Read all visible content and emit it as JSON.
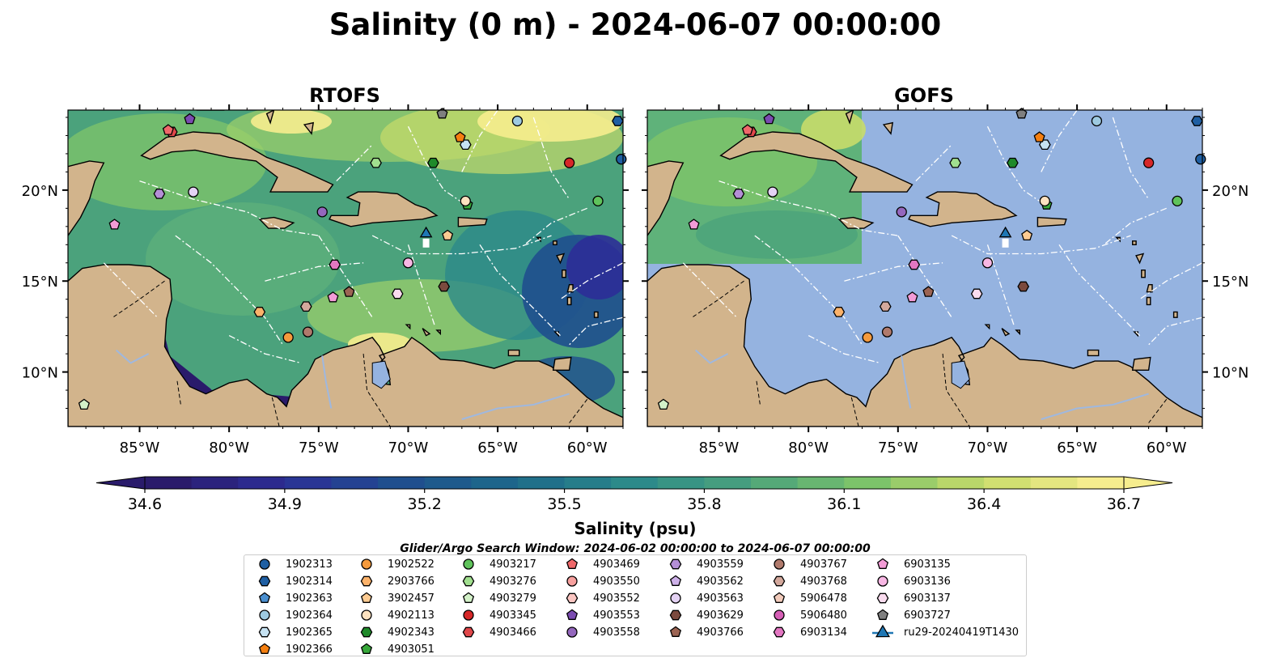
{
  "figure": {
    "title": "Salinity (0 m) - 2024-06-07 00:00:00",
    "subtitle": "Glider/Argo Search Window: 2024-06-02 00:00:00 to 2024-06-07 00:00:00"
  },
  "panels": [
    {
      "title": "RTOFS"
    },
    {
      "title": "GOFS"
    }
  ],
  "axes": {
    "lon_ticks": [
      "85°W",
      "80°W",
      "75°W",
      "70°W",
      "65°W",
      "60°W"
    ],
    "lat_ticks": [
      "20°N",
      "15°N",
      "10°N"
    ]
  },
  "colorbar": {
    "label": "Salinity (psu)",
    "ticks": [
      "34.6",
      "34.9",
      "35.2",
      "35.5",
      "35.8",
      "36.1",
      "36.4",
      "36.7"
    ],
    "min": 34.6,
    "max": 36.7,
    "extend": "both",
    "colormap_stops": [
      "#2a1b6b",
      "#2c2e97",
      "#1f4f8e",
      "#1d6a8a",
      "#2c8a8a",
      "#4ba27c",
      "#7cc36a",
      "#c8dc6a",
      "#f6ed8e"
    ]
  },
  "map_colors": {
    "land": "#d2b48c",
    "ocean_mask": "#95b3e0",
    "country_border": "#000000",
    "eez_line": "#ffffff",
    "river": "#9fb8df"
  },
  "platforms": [
    {
      "id": "1902313",
      "marker": "circle",
      "color": "#1f5fa3"
    },
    {
      "id": "1902314",
      "marker": "hexagon",
      "color": "#1f5fa3"
    },
    {
      "id": "1902363",
      "marker": "pentagon",
      "color": "#4a8fd0"
    },
    {
      "id": "1902364",
      "marker": "circle",
      "color": "#9ecae1"
    },
    {
      "id": "1902365",
      "marker": "hexagon",
      "color": "#c6e2f2"
    },
    {
      "id": "1902366",
      "marker": "pentagon",
      "color": "#f57f10"
    },
    {
      "id": "1902522",
      "marker": "circle",
      "color": "#f59a3c"
    },
    {
      "id": "2903766",
      "marker": "hexagon",
      "color": "#fbb26a"
    },
    {
      "id": "3902457",
      "marker": "pentagon",
      "color": "#fdcb92"
    },
    {
      "id": "4902113",
      "marker": "circle",
      "color": "#fde2c0"
    },
    {
      "id": "4902343",
      "marker": "hexagon",
      "color": "#1f8a2a"
    },
    {
      "id": "4903051",
      "marker": "pentagon",
      "color": "#37a83a"
    },
    {
      "id": "4903217",
      "marker": "circle",
      "color": "#5fc35b"
    },
    {
      "id": "4903276",
      "marker": "hexagon",
      "color": "#a1df8f"
    },
    {
      "id": "4903279",
      "marker": "pentagon",
      "color": "#d3f1c8"
    },
    {
      "id": "4903345",
      "marker": "circle",
      "color": "#d62728"
    },
    {
      "id": "4903466",
      "marker": "hexagon",
      "color": "#e0474a"
    },
    {
      "id": "4903469",
      "marker": "pentagon",
      "color": "#f0686a"
    },
    {
      "id": "4903550",
      "marker": "circle",
      "color": "#f7a09e"
    },
    {
      "id": "4903552",
      "marker": "hexagon",
      "color": "#fbc6c2"
    },
    {
      "id": "4903553",
      "marker": "pentagon",
      "color": "#7a4bb0"
    },
    {
      "id": "4903558",
      "marker": "circle",
      "color": "#9467bd"
    },
    {
      "id": "4903559",
      "marker": "hexagon",
      "color": "#b48fd6"
    },
    {
      "id": "4903562",
      "marker": "pentagon",
      "color": "#cdb0e8"
    },
    {
      "id": "4903563",
      "marker": "circle",
      "color": "#e4d2f4"
    },
    {
      "id": "4903629",
      "marker": "hexagon",
      "color": "#7b4a3e"
    },
    {
      "id": "4903766",
      "marker": "pentagon",
      "color": "#9c6453"
    },
    {
      "id": "4903767",
      "marker": "circle",
      "color": "#b07a6c"
    },
    {
      "id": "4903768",
      "marker": "hexagon",
      "color": "#d3a89c"
    },
    {
      "id": "5906478",
      "marker": "pentagon",
      "color": "#f2cbbb"
    },
    {
      "id": "5906480",
      "marker": "circle",
      "color": "#d65fb6"
    },
    {
      "id": "6903134",
      "marker": "hexagon",
      "color": "#e377c2"
    },
    {
      "id": "6903135",
      "marker": "pentagon",
      "color": "#f39bd6"
    },
    {
      "id": "6903136",
      "marker": "circle",
      "color": "#f8b7e4"
    },
    {
      "id": "6903137",
      "marker": "hexagon",
      "color": "#fadcef"
    },
    {
      "id": "6903727",
      "marker": "pentagon",
      "color": "#7f7f7f"
    },
    {
      "id": "ru29-20240419T1430",
      "marker": "triangle",
      "color": "#1f77b4"
    }
  ],
  "observations": [
    {
      "platform": "1902313",
      "lon": -58.1,
      "lat": 21.7
    },
    {
      "platform": "1902314",
      "lon": -58.3,
      "lat": 23.8
    },
    {
      "platform": "1902364",
      "lon": -63.9,
      "lat": 23.8
    },
    {
      "platform": "1902365",
      "lon": -66.8,
      "lat": 22.5
    },
    {
      "platform": "1902366",
      "lon": -67.1,
      "lat": 22.9
    },
    {
      "platform": "1902522",
      "lon": -76.7,
      "lat": 11.9
    },
    {
      "platform": "2903766",
      "lon": -78.3,
      "lat": 13.3
    },
    {
      "platform": "3902457",
      "lon": -67.8,
      "lat": 17.5
    },
    {
      "platform": "4903051",
      "lon": -66.7,
      "lat": 19.2
    },
    {
      "platform": "4902343",
      "lon": -68.6,
      "lat": 21.5
    },
    {
      "platform": "4903217",
      "lon": -59.4,
      "lat": 19.4
    },
    {
      "platform": "4903276",
      "lon": -71.8,
      "lat": 21.5
    },
    {
      "platform": "4903279",
      "lon": -88.1,
      "lat": 8.2
    },
    {
      "platform": "4902113",
      "lon": -66.8,
      "lat": 19.4
    },
    {
      "platform": "4903345",
      "lon": -61.0,
      "lat": 21.5
    },
    {
      "platform": "4903466",
      "lon": -83.2,
      "lat": 23.2
    },
    {
      "platform": "4903469",
      "lon": -83.4,
      "lat": 23.3
    },
    {
      "platform": "4903558",
      "lon": -74.8,
      "lat": 18.8
    },
    {
      "platform": "4903553",
      "lon": -82.2,
      "lat": 23.9
    },
    {
      "platform": "4903559",
      "lon": -83.9,
      "lat": 19.8
    },
    {
      "platform": "4903563",
      "lon": -82.0,
      "lat": 19.9
    },
    {
      "platform": "4903629",
      "lon": -68.0,
      "lat": 14.7
    },
    {
      "platform": "4903766",
      "lon": -73.3,
      "lat": 14.4
    },
    {
      "platform": "4903767",
      "lon": -75.6,
      "lat": 12.2
    },
    {
      "platform": "4903768",
      "lon": -75.7,
      "lat": 13.6
    },
    {
      "platform": "6903134",
      "lon": -74.1,
      "lat": 15.9
    },
    {
      "platform": "6903135",
      "lon": -86.4,
      "lat": 18.1
    },
    {
      "platform": "6903135",
      "lon": -74.2,
      "lat": 14.1
    },
    {
      "platform": "6903136",
      "lon": -70.0,
      "lat": 16.0
    },
    {
      "platform": "6903137",
      "lon": -70.6,
      "lat": 14.3
    },
    {
      "platform": "6903727",
      "lon": -68.1,
      "lat": 24.2
    },
    {
      "platform": "ru29-20240419T1430",
      "lon": -69.0,
      "lat": 17.6
    }
  ],
  "legend_items": [
    {
      "label": "1902313"
    },
    {
      "label": "1902314"
    },
    {
      "label": "1902363"
    },
    {
      "label": "1902364"
    },
    {
      "label": "1902365"
    },
    {
      "label": "1902366"
    },
    {
      "label": "1902522"
    },
    {
      "label": "2903766"
    },
    {
      "label": "3902457"
    },
    {
      "label": "4902113"
    },
    {
      "label": "4902343"
    },
    {
      "label": "4903051"
    },
    {
      "label": "4903217"
    },
    {
      "label": "4903276"
    },
    {
      "label": "4903279"
    },
    {
      "label": "4903345"
    },
    {
      "label": "4903466"
    },
    {
      "label": "4903469"
    },
    {
      "label": "4903550"
    },
    {
      "label": "4903552"
    },
    {
      "label": "4903553"
    },
    {
      "label": "4903558"
    },
    {
      "label": "4903559"
    },
    {
      "label": "4903562"
    },
    {
      "label": "4903563"
    },
    {
      "label": "4903629"
    },
    {
      "label": "4903766"
    },
    {
      "label": "4903767"
    },
    {
      "label": "4903768"
    },
    {
      "label": "5906478"
    },
    {
      "label": "5906480"
    },
    {
      "label": "6903134"
    },
    {
      "label": "6903135"
    },
    {
      "label": "6903136"
    },
    {
      "label": "6903137"
    },
    {
      "label": "6903727"
    },
    {
      "label": "ru29-20240419T1430"
    }
  ]
}
